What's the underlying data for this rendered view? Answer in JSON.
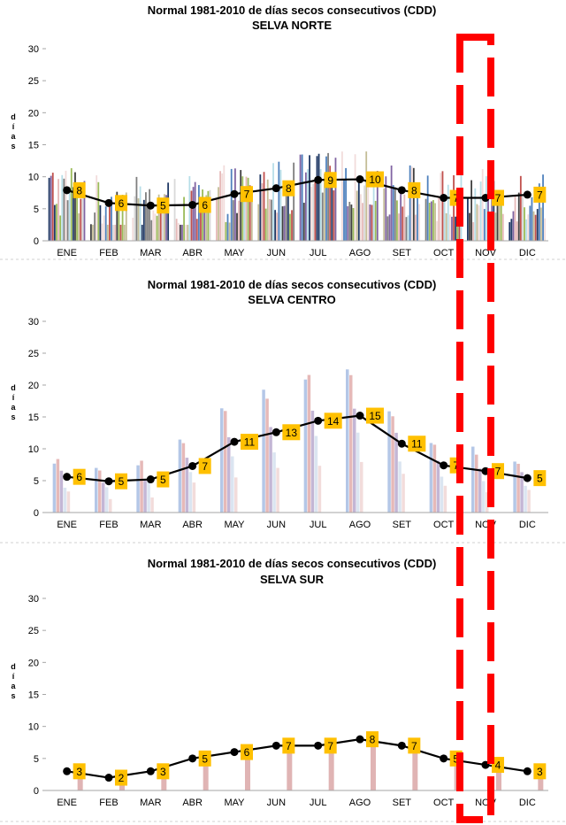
{
  "chart_data": [
    {
      "type": "line",
      "title": "Normal 1981-2010 de días secos consecutivos  (CDD)",
      "subtitle": "SELVA NORTE",
      "ylabel": "días",
      "ylim": [
        0,
        30
      ],
      "yticks": [
        0,
        5,
        10,
        15,
        20,
        25,
        30
      ],
      "categories": [
        "ENE",
        "FEB",
        "MAR",
        "ABR",
        "MAY",
        "JUN",
        "JUL",
        "AGO",
        "SET",
        "OCT",
        "NOV",
        "DIC"
      ],
      "series": [
        {
          "values": [
            7.9,
            5.9,
            5.5,
            5.6,
            7.3,
            8.2,
            9.5,
            9.6,
            7.9,
            6.7,
            6.7,
            7.2
          ],
          "labels": [
            "8",
            "6",
            "5",
            "6",
            "7",
            "8",
            "9",
            "10",
            "8",
            "7",
            "7",
            "7"
          ]
        }
      ],
      "grid": false,
      "legend": "none"
    },
    {
      "type": "line",
      "title": "Normal 1981-2010 de días secos consecutivos  (CDD)",
      "subtitle": "SELVA CENTRO",
      "ylabel": "días",
      "ylim": [
        0,
        30
      ],
      "yticks": [
        0,
        5,
        10,
        15,
        20,
        25,
        30
      ],
      "categories": [
        "ENE",
        "FEB",
        "MAR",
        "ABR",
        "MAY",
        "JUN",
        "JUL",
        "AGO",
        "SET",
        "OCT",
        "NOV",
        "DIC"
      ],
      "series": [
        {
          "values": [
            5.6,
            4.9,
            5.2,
            7.3,
            11.1,
            12.6,
            14.4,
            15.2,
            10.8,
            7.4,
            6.5,
            5.4
          ],
          "labels": [
            "6",
            "5",
            "5",
            "7",
            "11",
            "13",
            "14",
            "15",
            "11",
            "7",
            "7",
            "5"
          ]
        }
      ],
      "grid": false,
      "legend": "none"
    },
    {
      "type": "line",
      "title": "Normal 1981-2010 de días secos consecutivos  (CDD)",
      "subtitle": "SELVA SUR",
      "ylabel": "días",
      "ylim": [
        0,
        30
      ],
      "yticks": [
        0,
        5,
        10,
        15,
        20,
        25,
        30
      ],
      "categories": [
        "ENE",
        "FEB",
        "MAR",
        "ABR",
        "MAY",
        "JUN",
        "JUL",
        "AGO",
        "SET",
        "OCT",
        "NOV",
        "DIC"
      ],
      "series": [
        {
          "values": [
            3,
            2,
            3,
            5,
            6,
            7,
            7,
            8,
            7,
            5,
            4,
            3
          ],
          "labels": [
            "3",
            "2",
            "3",
            "5",
            "6",
            "7",
            "7",
            "8",
            "7",
            "5",
            "4",
            "3"
          ]
        }
      ],
      "grid": false,
      "legend": "none"
    }
  ],
  "colors": {
    "line": "#000000",
    "marker": "#000000",
    "label_box": "#ffc000",
    "highlight": "#ff0000",
    "axis": "#a6a6a6",
    "bars_norte": [
      "#7f7f7f",
      "#4f81bd",
      "#1f3864",
      "#c0504d",
      "#8064a2",
      "#9bbb59",
      "#d9d9d9",
      "#c4bd97",
      "#b7dee8",
      "#e6b9b8",
      "#404040",
      "#f2dcdb"
    ],
    "bars_centro": [
      "#b4c7e7",
      "#e6b9b8",
      "#c3b6d5",
      "#dbe5f1",
      "#f2dcdb"
    ],
    "bars_sur": [
      "#e0b4b4"
    ]
  }
}
